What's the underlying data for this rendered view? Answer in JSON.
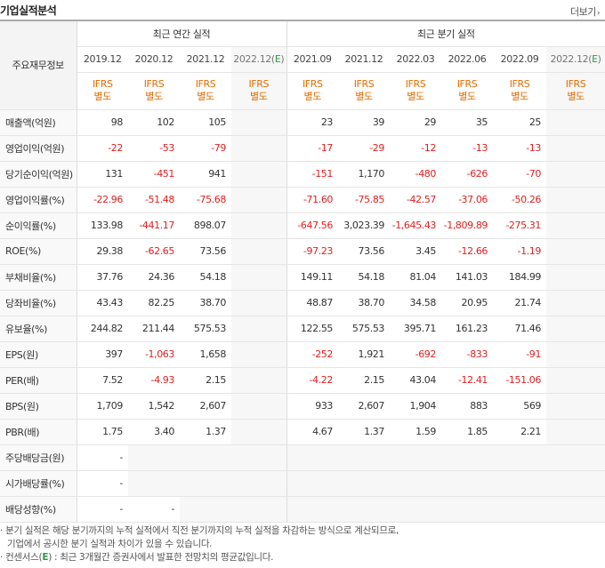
{
  "header": {
    "title": "기업실적분석",
    "more_label": "더보기",
    "more_arrow": "›"
  },
  "table": {
    "label_header": "주요재무정보",
    "annual_group": "최근 연간 실적",
    "quarter_group": "최근 분기 실적",
    "ifrs_top": "IFRS",
    "ifrs_bottom": "별도",
    "annual_periods": [
      "2019.12",
      "2020.12",
      "2021.12",
      "2022.12(E)"
    ],
    "quarter_periods": [
      "2021.09",
      "2021.12",
      "2022.03",
      "2022.06",
      "2022.09",
      "2022.12(E)"
    ],
    "rows": [
      {
        "label": "매출액(억원)",
        "annual": [
          "98",
          "102",
          "105",
          ""
        ],
        "quarter": [
          "23",
          "39",
          "29",
          "35",
          "25",
          ""
        ]
      },
      {
        "label": "영업이익(억원)",
        "annual": [
          "-22",
          "-53",
          "-79",
          ""
        ],
        "quarter": [
          "-17",
          "-29",
          "-12",
          "-13",
          "-13",
          ""
        ]
      },
      {
        "label": "당기순이익(억원)",
        "annual": [
          "131",
          "-451",
          "941",
          ""
        ],
        "quarter": [
          "-151",
          "1,170",
          "-480",
          "-626",
          "-70",
          ""
        ]
      },
      {
        "label": "영업이익률(%)",
        "annual": [
          "-22.96",
          "-51.48",
          "-75.68",
          ""
        ],
        "quarter": [
          "-71.60",
          "-75.85",
          "-42.57",
          "-37.06",
          "-50.26",
          ""
        ]
      },
      {
        "label": "순이익률(%)",
        "annual": [
          "133.98",
          "-441.17",
          "898.07",
          ""
        ],
        "quarter": [
          "-647.56",
          "3,023.39",
          "-1,645.43",
          "-1,809.89",
          "-275.31",
          ""
        ]
      },
      {
        "label": "ROE(%)",
        "annual": [
          "29.38",
          "-62.65",
          "73.56",
          ""
        ],
        "quarter": [
          "-97.23",
          "73.56",
          "3.45",
          "-12.66",
          "-1.19",
          ""
        ]
      },
      {
        "label": "부채비율(%)",
        "annual": [
          "37.76",
          "24.36",
          "54.18",
          ""
        ],
        "quarter": [
          "149.11",
          "54.18",
          "81.04",
          "141.03",
          "184.99",
          ""
        ]
      },
      {
        "label": "당좌비율(%)",
        "annual": [
          "43.43",
          "82.25",
          "38.70",
          ""
        ],
        "quarter": [
          "48.87",
          "38.70",
          "34.58",
          "20.95",
          "21.74",
          ""
        ]
      },
      {
        "label": "유보율(%)",
        "annual": [
          "244.82",
          "211.44",
          "575.53",
          ""
        ],
        "quarter": [
          "122.55",
          "575.53",
          "395.71",
          "161.23",
          "71.46",
          ""
        ]
      },
      {
        "label": "EPS(원)",
        "annual": [
          "397",
          "-1,063",
          "1,658",
          ""
        ],
        "quarter": [
          "-252",
          "1,921",
          "-692",
          "-833",
          "-91",
          ""
        ]
      },
      {
        "label": "PER(배)",
        "annual": [
          "7.52",
          "-4.93",
          "2.15",
          ""
        ],
        "quarter": [
          "-4.22",
          "2.15",
          "43.04",
          "-12.41",
          "-151.06",
          ""
        ]
      },
      {
        "label": "BPS(원)",
        "annual": [
          "1,709",
          "1,542",
          "2,607",
          ""
        ],
        "quarter": [
          "933",
          "2,607",
          "1,904",
          "883",
          "569",
          ""
        ]
      },
      {
        "label": "PBR(배)",
        "annual": [
          "1.75",
          "3.40",
          "1.37",
          ""
        ],
        "quarter": [
          "4.67",
          "1.37",
          "1.59",
          "1.85",
          "2.21",
          ""
        ]
      },
      {
        "label": "주당배당금(원)",
        "annual": [
          "-",
          "",
          "",
          ""
        ],
        "quarter": [
          "",
          "",
          "",
          "",
          "",
          ""
        ]
      },
      {
        "label": "시가배당률(%)",
        "annual": [
          "-",
          "",
          "",
          ""
        ],
        "quarter": [
          "",
          "",
          "",
          "",
          "",
          ""
        ]
      },
      {
        "label": "배당성향(%)",
        "annual": [
          "-",
          "-",
          "",
          ""
        ],
        "quarter": [
          "",
          "",
          "",
          "",
          "",
          ""
        ]
      }
    ]
  },
  "notes": {
    "line1": "· 분기 실적은 해당 분기까지의 누적 실적에서 직전 분기까지의 누적 실적을 차감하는 방식으로 계산되므로,",
    "line2": "기업에서 공시한 분기 실적과 차이가 있을 수 있습니다.",
    "line3_pre": "· 컨센서스(",
    "line3_e": "E",
    "line3_post": ") : 최근 3개월간 증권사에서 발표한 전망치의 평균값입니다."
  },
  "colors": {
    "negative": "#e02020",
    "ifrs": "#e36c00",
    "estimate_mark": "#2a9d3c"
  }
}
